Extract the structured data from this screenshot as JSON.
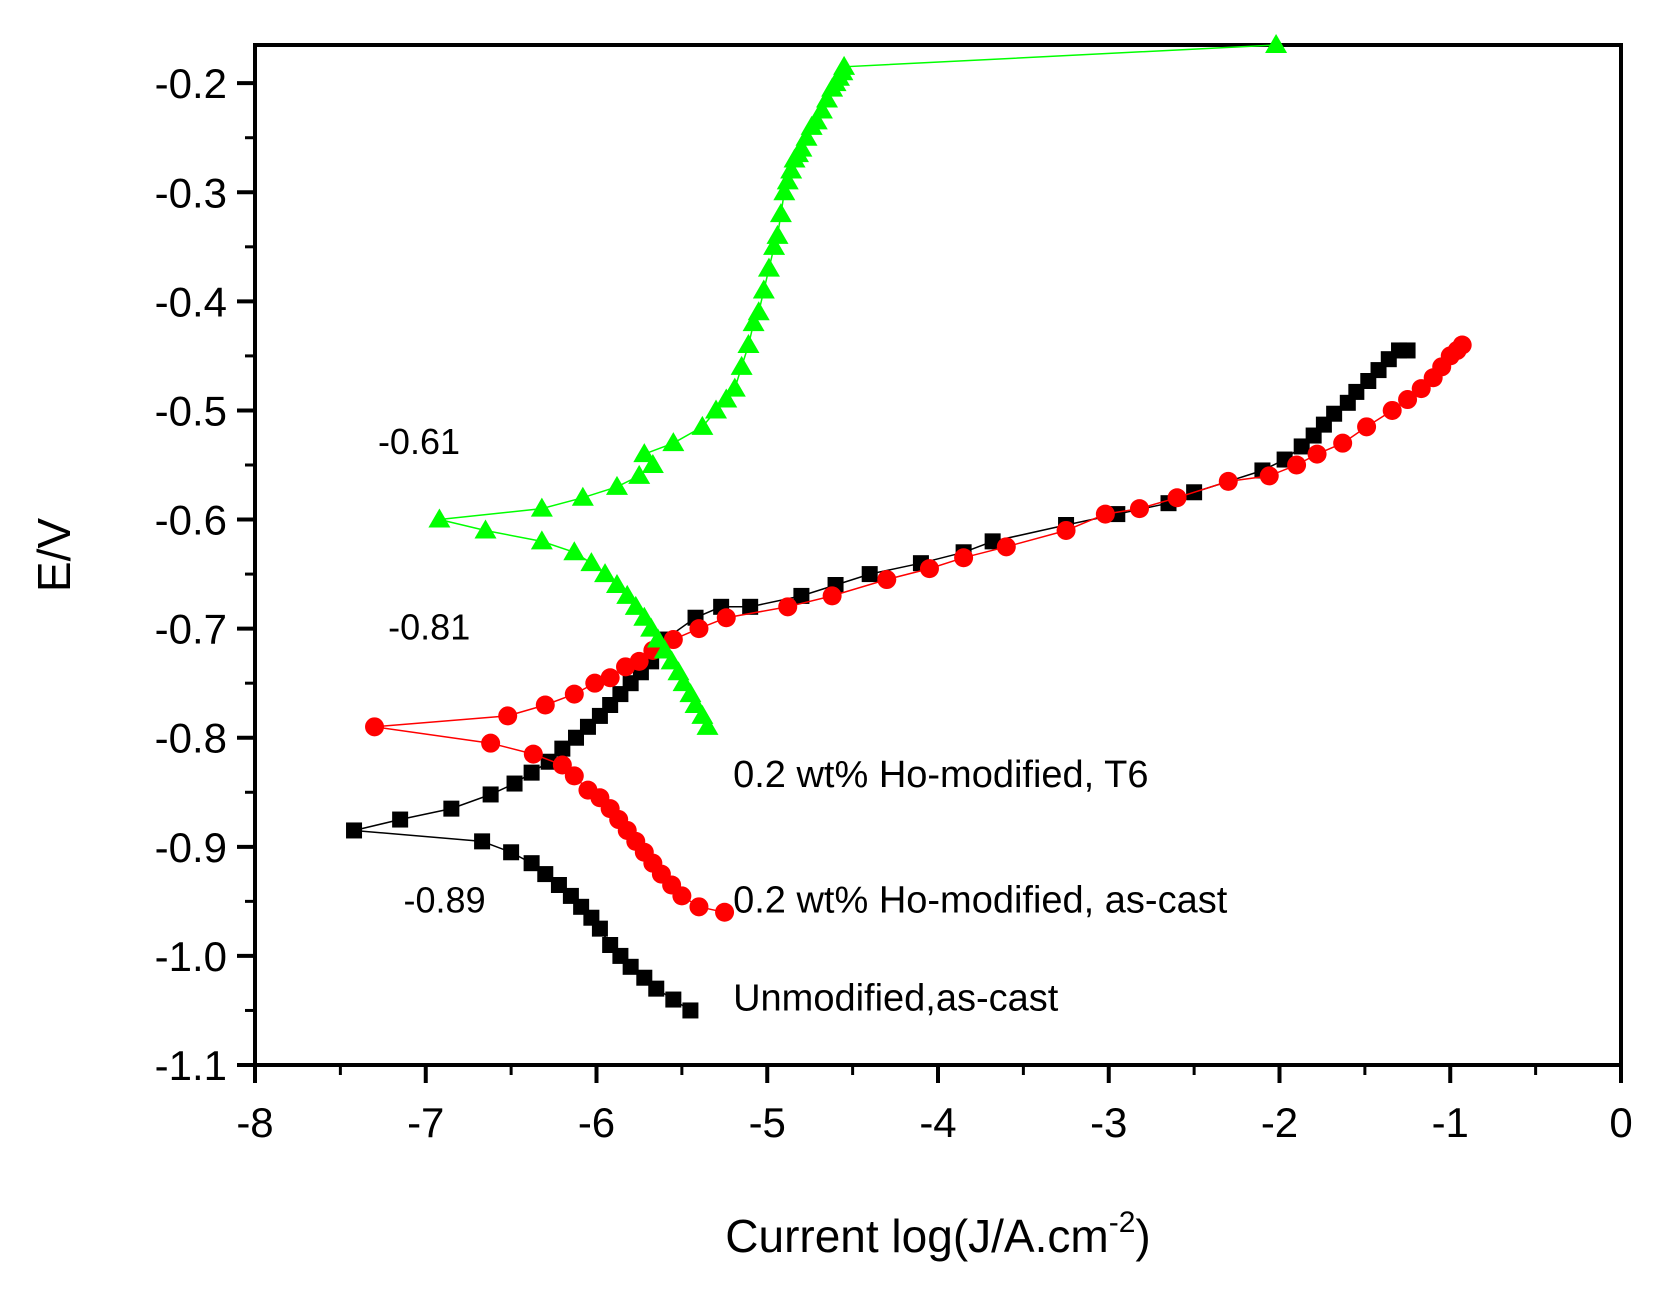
{
  "chart_data": {
    "type": "line",
    "title": "",
    "xlabel": "Current log(J/A.cm",
    "xlabel_sup": "-2",
    "xlabel_close": ")",
    "ylabel": "E/V",
    "xlim": [
      -8,
      0
    ],
    "ylim": [
      -1.1,
      -0.165
    ],
    "x_ticks": [
      "-8",
      "-7",
      "-6",
      "-5",
      "-4",
      "-3",
      "-2",
      "-1",
      "0"
    ],
    "y_ticks": [
      "-0.2",
      "-0.3",
      "-0.4",
      "-0.5",
      "-0.6",
      "-0.7",
      "-0.8",
      "-0.9",
      "-1.0",
      "-1.1"
    ],
    "grid": false,
    "annotations": [
      {
        "text": "-0.61",
        "x": -7.28,
        "y": -0.54
      },
      {
        "text": "-0.81",
        "x": -7.22,
        "y": -0.71
      },
      {
        "text": "-0.89",
        "x": -7.13,
        "y": -0.96
      }
    ],
    "series": [
      {
        "name": "Unmodified,as-cast",
        "label_pos": [
          -5.2,
          -1.05
        ],
        "color": "#000000",
        "marker": "square",
        "x": [
          -5.45,
          -5.55,
          -5.65,
          -5.72,
          -5.8,
          -5.86,
          -5.92,
          -5.98,
          -6.03,
          -6.09,
          -6.15,
          -6.22,
          -6.3,
          -6.38,
          -6.5,
          -6.67,
          -7.42,
          -7.15,
          -6.85,
          -6.62,
          -6.48,
          -6.38,
          -6.28,
          -6.2,
          -6.12,
          -6.05,
          -5.98,
          -5.92,
          -5.86,
          -5.8,
          -5.74,
          -5.68,
          -5.6,
          -5.42,
          -5.27,
          -5.1,
          -4.8,
          -4.6,
          -4.4,
          -4.1,
          -3.85,
          -3.68,
          -3.25,
          -2.95,
          -2.65,
          -2.5,
          -2.1,
          -1.97,
          -1.87,
          -1.8,
          -1.74,
          -1.68,
          -1.6,
          -1.55,
          -1.48,
          -1.42,
          -1.36,
          -1.3,
          -1.25
        ],
        "y": [
          -1.05,
          -1.04,
          -1.03,
          -1.02,
          -1.01,
          -1.0,
          -0.99,
          -0.975,
          -0.965,
          -0.955,
          -0.945,
          -0.935,
          -0.925,
          -0.915,
          -0.905,
          -0.895,
          -0.885,
          -0.875,
          -0.865,
          -0.852,
          -0.842,
          -0.832,
          -0.822,
          -0.81,
          -0.8,
          -0.79,
          -0.78,
          -0.77,
          -0.76,
          -0.75,
          -0.74,
          -0.73,
          -0.71,
          -0.69,
          -0.68,
          -0.68,
          -0.67,
          -0.66,
          -0.65,
          -0.64,
          -0.63,
          -0.62,
          -0.605,
          -0.595,
          -0.585,
          -0.575,
          -0.555,
          -0.545,
          -0.533,
          -0.523,
          -0.513,
          -0.503,
          -0.493,
          -0.483,
          -0.473,
          -0.463,
          -0.453,
          -0.445,
          -0.445
        ]
      },
      {
        "name": "0.2 wt% Ho-modified, as-cast",
        "label_pos": [
          -5.2,
          -0.96
        ],
        "color": "#ff0000",
        "marker": "circle",
        "x": [
          -5.25,
          -5.4,
          -5.5,
          -5.56,
          -5.62,
          -5.67,
          -5.72,
          -5.77,
          -5.82,
          -5.87,
          -5.92,
          -5.98,
          -6.05,
          -6.13,
          -6.2,
          -6.37,
          -6.62,
          -7.3,
          -6.52,
          -6.3,
          -6.13,
          -6.01,
          -5.92,
          -5.83,
          -5.75,
          -5.67,
          -5.55,
          -5.4,
          -5.24,
          -4.88,
          -4.62,
          -4.3,
          -4.05,
          -3.85,
          -3.6,
          -3.25,
          -3.02,
          -2.82,
          -2.6,
          -2.3,
          -2.06,
          -1.9,
          -1.78,
          -1.63,
          -1.49,
          -1.34,
          -1.25,
          -1.17,
          -1.1,
          -1.05,
          -1.0,
          -0.96,
          -0.93
        ],
        "y": [
          -0.96,
          -0.955,
          -0.945,
          -0.935,
          -0.925,
          -0.915,
          -0.905,
          -0.895,
          -0.885,
          -0.875,
          -0.865,
          -0.855,
          -0.848,
          -0.835,
          -0.825,
          -0.815,
          -0.805,
          -0.79,
          -0.78,
          -0.77,
          -0.76,
          -0.75,
          -0.745,
          -0.735,
          -0.73,
          -0.72,
          -0.71,
          -0.7,
          -0.69,
          -0.68,
          -0.67,
          -0.655,
          -0.645,
          -0.635,
          -0.625,
          -0.61,
          -0.595,
          -0.59,
          -0.58,
          -0.565,
          -0.56,
          -0.55,
          -0.54,
          -0.53,
          -0.515,
          -0.5,
          -0.49,
          -0.48,
          -0.47,
          -0.46,
          -0.45,
          -0.445,
          -0.44
        ]
      },
      {
        "name": "0.2 wt% Ho-modified, T6",
        "label_pos": [
          -5.2,
          -0.845
        ],
        "color": "#00ff00",
        "marker": "triangle",
        "x": [
          -5.35,
          -5.38,
          -5.42,
          -5.45,
          -5.49,
          -5.52,
          -5.56,
          -5.6,
          -5.64,
          -5.68,
          -5.72,
          -5.77,
          -5.82,
          -5.88,
          -5.95,
          -6.03,
          -6.13,
          -6.32,
          -6.65,
          -6.92,
          -6.32,
          -6.08,
          -5.88,
          -5.75,
          -5.67,
          -5.72,
          -5.55,
          -5.38,
          -5.3,
          -5.24,
          -5.19,
          -5.15,
          -5.11,
          -5.08,
          -5.05,
          -5.02,
          -4.99,
          -4.96,
          -4.94,
          -4.92,
          -4.9,
          -4.88,
          -4.86,
          -4.84,
          -4.82,
          -4.8,
          -4.77,
          -4.74,
          -4.71,
          -4.68,
          -4.65,
          -4.62,
          -4.6,
          -4.58,
          -4.56,
          -4.55,
          -2.02
        ],
        "y": [
          -0.79,
          -0.78,
          -0.77,
          -0.76,
          -0.75,
          -0.74,
          -0.73,
          -0.72,
          -0.71,
          -0.7,
          -0.69,
          -0.68,
          -0.67,
          -0.66,
          -0.65,
          -0.64,
          -0.63,
          -0.62,
          -0.61,
          -0.6,
          -0.59,
          -0.58,
          -0.57,
          -0.56,
          -0.55,
          -0.54,
          -0.53,
          -0.515,
          -0.5,
          -0.49,
          -0.48,
          -0.46,
          -0.44,
          -0.42,
          -0.41,
          -0.39,
          -0.37,
          -0.35,
          -0.34,
          -0.32,
          -0.3,
          -0.29,
          -0.28,
          -0.27,
          -0.265,
          -0.26,
          -0.25,
          -0.24,
          -0.235,
          -0.225,
          -0.215,
          -0.205,
          -0.2,
          -0.195,
          -0.19,
          -0.185,
          -0.165
        ]
      }
    ]
  }
}
